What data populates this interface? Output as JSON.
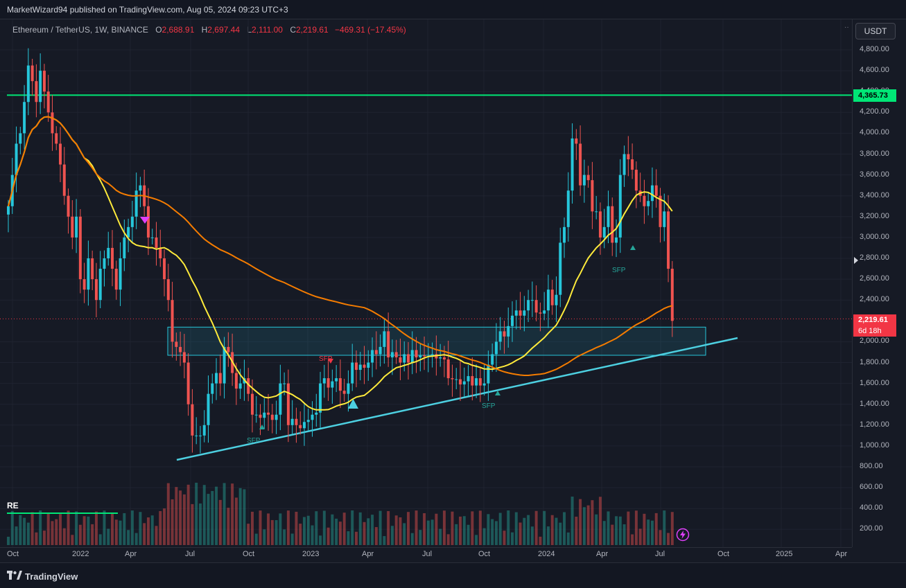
{
  "header": {
    "publisher": "MarketWizard94 published on TradingView.com, Aug 05, 2024 09:23 UTC+3"
  },
  "legend": {
    "symbol": "Ethereum / TetherUS, 1W, BINANCE",
    "open_label": "O",
    "open": "2,688.91",
    "high_label": "H",
    "high": "2,697.44",
    "low_label": "L",
    "low": "2,111.00",
    "close_label": "C",
    "close": "2,219.61",
    "change": "−469.31 (−17.45%)"
  },
  "currency_button": "USDT",
  "price_axis": {
    "ticks": [
      "4,800.00",
      "4,600.00",
      "4,400.00",
      "4,200.00",
      "4,000.00",
      "3,800.00",
      "3,600.00",
      "3,400.00",
      "3,200.00",
      "3,000.00",
      "2,800.00",
      "2,600.00",
      "2,400.00",
      "2,000.00",
      "1,800.00",
      "1,600.00",
      "1,400.00",
      "1,200.00",
      "1,000.00",
      "800.00",
      "600.00",
      "400.00",
      "200.00"
    ],
    "tick_values": [
      4800,
      4600,
      4400,
      4200,
      4000,
      3800,
      3600,
      3400,
      3200,
      3000,
      2800,
      2600,
      2400,
      2000,
      1800,
      1600,
      1400,
      1200,
      1000,
      800,
      600,
      400,
      200
    ],
    "resistance_badge": "4,365.73",
    "last_price_badge": "2,219.61",
    "countdown_badge": "6d 18h"
  },
  "time_axis": {
    "labels": [
      "Oct",
      "2022",
      "Apr",
      "Jul",
      "Oct",
      "2023",
      "Apr",
      "Jul",
      "Oct",
      "2024",
      "Apr",
      "Jul",
      "Oct",
      "2025",
      "Apr"
    ]
  },
  "annotations": {
    "sfp_labels": [
      "SFP",
      "SFP",
      "SFP",
      "SFP"
    ],
    "re_label": "RE"
  },
  "footer": {
    "brand": "TradingView"
  },
  "colors": {
    "background": "#161a25",
    "up_candle": "#26a69a",
    "down_candle": "#ef5350",
    "ma_fast": "#ffeb3b",
    "ma_slow": "#f57c00",
    "trendline": "#4dd0e1",
    "resistance": "#00e676",
    "zone_fill": "#26c6da"
  },
  "icons": [
    "tradingview-logo-icon",
    "lightning-icon",
    "last-price-arrow-icon",
    "triangle-up-icon",
    "triangle-down-icon"
  ],
  "chart_data": {
    "type": "candlestick",
    "symbol": "Ethereum / TetherUS",
    "interval": "1W",
    "exchange": "BINANCE",
    "ylim": [
      100,
      4950
    ],
    "resistance_level": 4365.73,
    "zone": {
      "top": 2140,
      "bottom": 1870
    },
    "series_close": [
      3300,
      3600,
      3900,
      4000,
      4300,
      4650,
      4500,
      4300,
      4600,
      4400,
      4200,
      4000,
      3900,
      3700,
      3400,
      3200,
      3000,
      3200,
      2600,
      2500,
      2800,
      2600,
      2400,
      2700,
      2800,
      2900,
      2700,
      2500,
      2800,
      3000,
      3100,
      3200,
      3450,
      3500,
      3300,
      3000,
      3000,
      2900,
      2800,
      2600,
      2400,
      2000,
      1950,
      1900,
      1800,
      1400,
      1100,
      1100,
      1100,
      1200,
      1500,
      1600,
      1700,
      1600,
      1950,
      1900,
      1700,
      1550,
      1600,
      1650,
      1500,
      1300,
      1300,
      1270,
      1320,
      1300,
      1250,
      1300,
      1600,
      1600,
      1200,
      1260,
      1200,
      1170,
      1230,
      1250,
      1300,
      1320,
      1600,
      1650,
      1560,
      1620,
      1650,
      1530,
      1500,
      1600,
      1800,
      1730,
      1780,
      1750,
      1800,
      1920,
      1880,
      1950,
      2100,
      1850,
      1900,
      1850,
      1800,
      1880,
      1800,
      1920,
      1850,
      1870,
      1860,
      1860,
      1880,
      1840,
      1850,
      1830,
      1650,
      1640,
      1640,
      1590,
      1620,
      1670,
      1580,
      1650,
      1580,
      1600,
      1780,
      1880,
      2000,
      2100,
      2050,
      2150,
      2250,
      2300,
      2250,
      2300,
      2400,
      2400,
      2280,
      2270,
      2300,
      2500,
      2350,
      2450,
      2950,
      3100,
      3450,
      3950,
      3900,
      3500,
      3600,
      3550,
      3250,
      3250,
      3000,
      3100,
      3300,
      2950,
      3000,
      3600,
      3800,
      3750,
      3650,
      3450,
      3400,
      3300,
      3350,
      3500,
      3400,
      3100,
      3250,
      2700,
      2200
    ]
  }
}
